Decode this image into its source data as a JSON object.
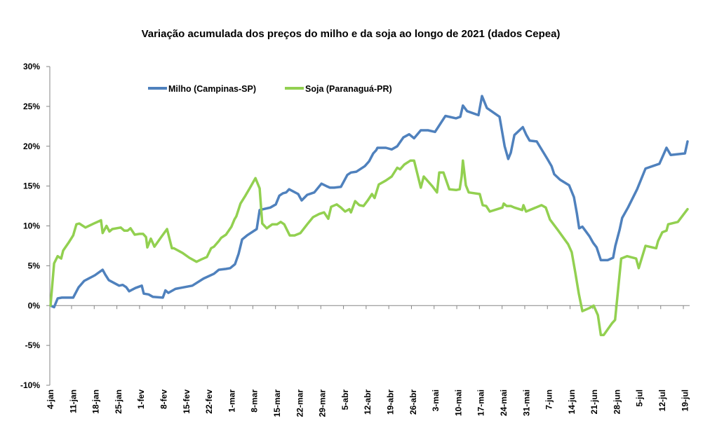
{
  "chart_data": {
    "type": "line",
    "title": "Variação acumulada dos preços do milho e da soja ao longo  de 2021  (dados Cepea)",
    "xlabel": "",
    "ylabel": "",
    "ylim": [
      -10,
      30
    ],
    "yticks": [
      -10,
      -5,
      0,
      5,
      10,
      15,
      20,
      25,
      30
    ],
    "ytick_labels": [
      "-10%",
      "-5%",
      "0%",
      "5%",
      "10%",
      "15%",
      "20%",
      "25%",
      "30%"
    ],
    "x_unit": "days since 4-jan-2021",
    "xlim": [
      0,
      198
    ],
    "xtick_labels": [
      "4-jan",
      "11-jan",
      "18-jan",
      "25-jan",
      "1-fev",
      "8-fev",
      "15-fev",
      "22-fev",
      "1-mar",
      "8-mar",
      "15-mar",
      "22-mar",
      "29-mar",
      "5-abr",
      "12-abr",
      "19-abr",
      "26-abr",
      "3-mai",
      "10-mai",
      "17-mai",
      "24-mai",
      "31-mai",
      "7-jun",
      "14-jun",
      "21-jun",
      "28-jun",
      "5-jul",
      "12-jul",
      "19-jul"
    ],
    "xtick_days": [
      0,
      7,
      14,
      21,
      28,
      35,
      42,
      49,
      56,
      63,
      70,
      77,
      84,
      91,
      98,
      105,
      112,
      119,
      126,
      133,
      140,
      147,
      154,
      161,
      168,
      175,
      182,
      189,
      196
    ],
    "grid": false,
    "legend_position": "top-left",
    "series": [
      {
        "name": "Milho (Campinas-SP)",
        "color": "#4F81BD",
        "points": [
          [
            0,
            0
          ],
          [
            1.1,
            -0.2
          ],
          [
            2.2,
            0.9
          ],
          [
            3.5,
            1.0
          ],
          [
            7,
            1.0
          ],
          [
            8.7,
            2.3
          ],
          [
            10.4,
            3.1
          ],
          [
            13.7,
            3.8
          ],
          [
            16.1,
            4.5
          ],
          [
            16.9,
            3.9
          ],
          [
            18,
            3.2
          ],
          [
            21.2,
            2.5
          ],
          [
            22.3,
            2.6
          ],
          [
            23.4,
            2.3
          ],
          [
            24.3,
            1.8
          ],
          [
            26.2,
            2.2
          ],
          [
            28.2,
            2.5
          ],
          [
            28.8,
            1.5
          ],
          [
            30.3,
            1.4
          ],
          [
            31.6,
            1.1
          ],
          [
            34.7,
            1.0
          ],
          [
            35.5,
            1.9
          ],
          [
            36.4,
            1.6
          ],
          [
            38.6,
            2.1
          ],
          [
            43.8,
            2.5
          ],
          [
            47.3,
            3.4
          ],
          [
            50.5,
            4.0
          ],
          [
            52,
            4.5
          ],
          [
            54.2,
            4.6
          ],
          [
            55.5,
            4.7
          ],
          [
            57,
            5.2
          ],
          [
            58.1,
            6.5
          ],
          [
            59.2,
            8.3
          ],
          [
            60.7,
            8.8
          ],
          [
            63.7,
            9.6
          ],
          [
            64.6,
            12.0
          ],
          [
            67.9,
            12.3
          ],
          [
            69.6,
            12.7
          ],
          [
            70.7,
            13.8
          ],
          [
            71.8,
            14.1
          ],
          [
            72.8,
            14.2
          ],
          [
            73.7,
            14.6
          ],
          [
            76.5,
            14.0
          ],
          [
            77.6,
            13.2
          ],
          [
            79.3,
            13.9
          ],
          [
            81.5,
            14.2
          ],
          [
            83.7,
            15.3
          ],
          [
            85.2,
            15.0
          ],
          [
            86.3,
            14.8
          ],
          [
            87.6,
            14.8
          ],
          [
            89.7,
            14.9
          ],
          [
            91.7,
            16.4
          ],
          [
            92.8,
            16.7
          ],
          [
            94.5,
            16.8
          ],
          [
            97.1,
            17.5
          ],
          [
            98.4,
            18.1
          ],
          [
            99.7,
            19.1
          ],
          [
            100.6,
            19.5
          ],
          [
            101,
            19.8
          ],
          [
            103.6,
            19.8
          ],
          [
            105.4,
            19.6
          ],
          [
            107.1,
            20.0
          ],
          [
            109,
            21.1
          ],
          [
            110.8,
            21.5
          ],
          [
            112.3,
            21.0
          ],
          [
            114.4,
            22.0
          ],
          [
            116.6,
            22.0
          ],
          [
            118.8,
            21.8
          ],
          [
            122,
            23.8
          ],
          [
            125.3,
            23.5
          ],
          [
            126.6,
            23.7
          ],
          [
            127.4,
            25.1
          ],
          [
            128.7,
            24.4
          ],
          [
            132.2,
            23.9
          ],
          [
            133.3,
            26.3
          ],
          [
            134.8,
            24.8
          ],
          [
            138.7,
            23.7
          ],
          [
            140.3,
            20.0
          ],
          [
            141.4,
            18.4
          ],
          [
            142.2,
            19.2
          ],
          [
            143.3,
            21.4
          ],
          [
            145.9,
            22.4
          ],
          [
            147,
            21.4
          ],
          [
            148,
            20.7
          ],
          [
            150.2,
            20.6
          ],
          [
            153.5,
            18.4
          ],
          [
            154.8,
            17.5
          ],
          [
            155.6,
            16.5
          ],
          [
            157.4,
            15.8
          ],
          [
            160.2,
            15.1
          ],
          [
            161.7,
            13.6
          ],
          [
            162.6,
            11.6
          ],
          [
            163.3,
            9.7
          ],
          [
            164.3,
            9.9
          ],
          [
            166.5,
            8.7
          ],
          [
            167.6,
            7.9
          ],
          [
            168.7,
            7.3
          ],
          [
            170,
            5.7
          ],
          [
            172.1,
            5.7
          ],
          [
            173.8,
            6.0
          ],
          [
            174.5,
            7.5
          ],
          [
            175.8,
            9.5
          ],
          [
            176.6,
            11.0
          ],
          [
            178.4,
            12.3
          ],
          [
            181.2,
            14.6
          ],
          [
            183.8,
            17.2
          ],
          [
            188.1,
            17.8
          ],
          [
            190.3,
            19.8
          ],
          [
            191.6,
            18.9
          ],
          [
            196,
            19.1
          ],
          [
            196.8,
            20.6
          ]
        ]
      },
      {
        "name": "Soja (Paranaguá-PR)",
        "color": "#92D050",
        "points": [
          [
            0,
            0
          ],
          [
            1.1,
            5.3
          ],
          [
            2.2,
            6.2
          ],
          [
            3.3,
            5.9
          ],
          [
            3.9,
            6.9
          ],
          [
            5.6,
            7.9
          ],
          [
            7,
            8.8
          ],
          [
            8.0,
            10.2
          ],
          [
            8.9,
            10.3
          ],
          [
            10.8,
            9.8
          ],
          [
            13.4,
            10.3
          ],
          [
            15.6,
            10.7
          ],
          [
            16.1,
            9.1
          ],
          [
            17.3,
            10.0
          ],
          [
            18.2,
            9.3
          ],
          [
            19.1,
            9.6
          ],
          [
            21.7,
            9.8
          ],
          [
            22.8,
            9.4
          ],
          [
            23.8,
            9.4
          ],
          [
            24.7,
            9.7
          ],
          [
            26,
            8.9
          ],
          [
            27.5,
            9.0
          ],
          [
            28.6,
            9.0
          ],
          [
            29.5,
            8.6
          ],
          [
            29.9,
            7.3
          ],
          [
            31,
            8.4
          ],
          [
            32.1,
            7.4
          ],
          [
            34.2,
            8.6
          ],
          [
            36,
            9.6
          ],
          [
            37.5,
            7.2
          ],
          [
            38.1,
            7.2
          ],
          [
            40.8,
            6.6
          ],
          [
            42.9,
            6.0
          ],
          [
            45.1,
            5.5
          ],
          [
            46.6,
            5.8
          ],
          [
            48.3,
            6.1
          ],
          [
            49.6,
            7.2
          ],
          [
            50.5,
            7.4
          ],
          [
            52,
            8.1
          ],
          [
            52.7,
            8.5
          ],
          [
            54.2,
            8.9
          ],
          [
            55.9,
            9.9
          ],
          [
            56.8,
            10.8
          ],
          [
            57.4,
            11.2
          ],
          [
            58.7,
            12.8
          ],
          [
            60.2,
            13.8
          ],
          [
            61.5,
            14.7
          ],
          [
            63.3,
            16.0
          ],
          [
            64.6,
            14.7
          ],
          [
            65.4,
            10.3
          ],
          [
            66.8,
            9.7
          ],
          [
            68.5,
            10.2
          ],
          [
            70,
            10.2
          ],
          [
            71.1,
            10.5
          ],
          [
            72.2,
            10.2
          ],
          [
            73.9,
            8.8
          ],
          [
            75.4,
            8.8
          ],
          [
            77.2,
            9.1
          ],
          [
            79.3,
            10.2
          ],
          [
            81.1,
            11.1
          ],
          [
            83,
            11.5
          ],
          [
            84.5,
            11.7
          ],
          [
            85.8,
            10.9
          ],
          [
            86.7,
            12.4
          ],
          [
            88.4,
            12.7
          ],
          [
            89.7,
            12.3
          ],
          [
            91,
            11.8
          ],
          [
            92.3,
            12.1
          ],
          [
            92.8,
            11.7
          ],
          [
            94.1,
            13.1
          ],
          [
            95.4,
            12.6
          ],
          [
            96.7,
            12.5
          ],
          [
            98,
            13.2
          ],
          [
            99.3,
            14.0
          ],
          [
            100.1,
            13.5
          ],
          [
            101.4,
            15.2
          ],
          [
            103.6,
            15.7
          ],
          [
            105.4,
            16.2
          ],
          [
            107.1,
            17.3
          ],
          [
            108,
            17.1
          ],
          [
            109.3,
            17.7
          ],
          [
            111.2,
            18.2
          ],
          [
            112.3,
            18.2
          ],
          [
            114.4,
            14.8
          ],
          [
            115.3,
            16.2
          ],
          [
            117.9,
            15.0
          ],
          [
            119.4,
            14.2
          ],
          [
            120.1,
            16.7
          ],
          [
            121.4,
            16.7
          ],
          [
            123.2,
            14.6
          ],
          [
            125.3,
            14.5
          ],
          [
            126.4,
            14.6
          ],
          [
            127,
            16.2
          ],
          [
            127.4,
            18.2
          ],
          [
            128.3,
            15.1
          ],
          [
            129.2,
            14.2
          ],
          [
            132.6,
            14.0
          ],
          [
            133.5,
            12.6
          ],
          [
            134.6,
            12.5
          ],
          [
            135.7,
            11.8
          ],
          [
            139.6,
            12.3
          ],
          [
            140,
            12.8
          ],
          [
            140.9,
            12.5
          ],
          [
            142.2,
            12.5
          ],
          [
            143.3,
            12.3
          ],
          [
            145.7,
            12.0
          ],
          [
            146.1,
            12.6
          ],
          [
            146.9,
            11.8
          ],
          [
            151.7,
            12.6
          ],
          [
            153,
            12.3
          ],
          [
            154.3,
            10.8
          ],
          [
            156.7,
            9.5
          ],
          [
            159.9,
            7.7
          ],
          [
            161,
            6.7
          ],
          [
            162.1,
            4.2
          ],
          [
            163.2,
            1.5
          ],
          [
            164.3,
            -0.7
          ],
          [
            166.5,
            -0.3
          ],
          [
            167.8,
            0
          ],
          [
            169.1,
            -1.2
          ],
          [
            170,
            -3.7
          ],
          [
            170.9,
            -3.7
          ],
          [
            173.5,
            -2.2
          ],
          [
            174.4,
            -1.8
          ],
          [
            176.3,
            5.9
          ],
          [
            178.1,
            6.2
          ],
          [
            180.9,
            5.9
          ],
          [
            181.7,
            4.7
          ],
          [
            183.8,
            7.5
          ],
          [
            187.1,
            7.2
          ],
          [
            187.7,
            8.1
          ],
          [
            189,
            9.2
          ],
          [
            190.3,
            9.4
          ],
          [
            190.8,
            10.2
          ],
          [
            193.8,
            10.5
          ],
          [
            196.8,
            12.1
          ]
        ]
      }
    ]
  }
}
